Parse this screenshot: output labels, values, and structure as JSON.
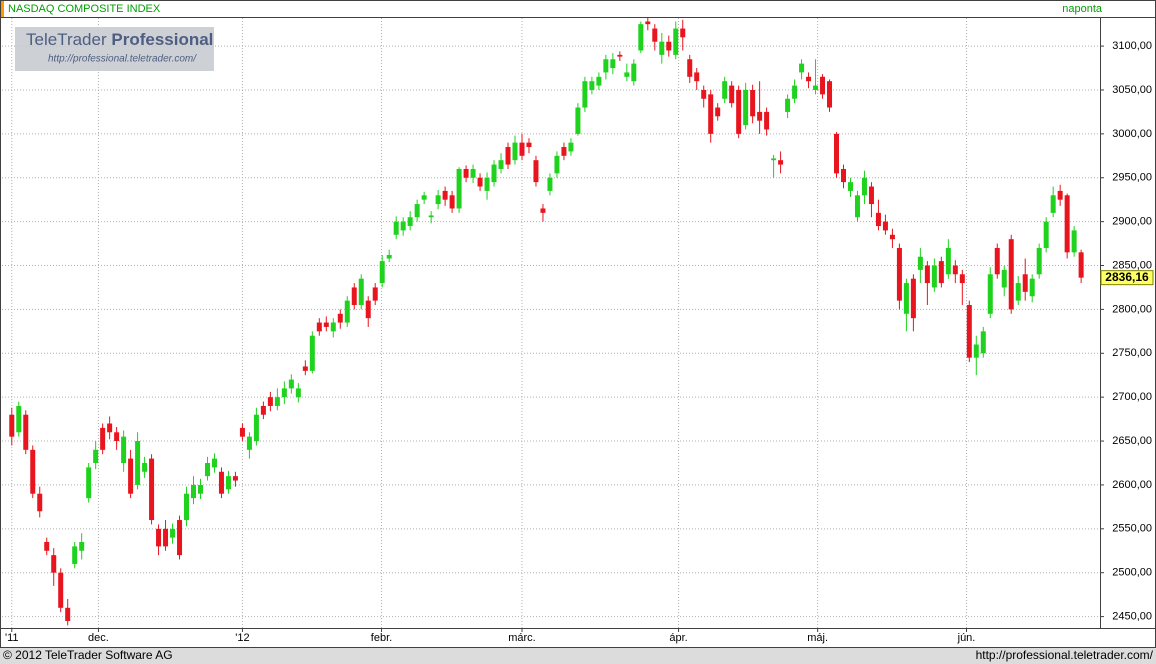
{
  "header": {
    "title": "NASDAQ COMPOSITE INDEX",
    "interval": "naponta"
  },
  "watermark": {
    "brand": "TeleTrader",
    "product": "Professional",
    "url": "http://professional.teletrader.com/"
  },
  "chart_data": {
    "type": "candlestick",
    "open": [
      2680,
      2660,
      2680,
      2640,
      2590,
      2535,
      2520,
      2500,
      2460,
      2510,
      2525,
      2585,
      2625,
      2665,
      2670,
      2660,
      2625,
      2630,
      2600,
      2615,
      2630,
      2550,
      2550,
      2540,
      2560,
      2560,
      2585,
      2590,
      2610,
      2620,
      2615,
      2595,
      2610,
      2665,
      2640,
      2650,
      2690,
      2700,
      2690,
      2700,
      2710,
      2700,
      2735,
      2730,
      2785,
      2785,
      2775,
      2795,
      2785,
      2825,
      2805,
      2810,
      2825,
      2830,
      2858,
      2885,
      2890,
      2895,
      2905,
      2925,
      2905,
      2920,
      2935,
      2930,
      2915,
      2960,
      2950,
      2950,
      2935,
      2945,
      2960,
      2985,
      2970,
      2990,
      2990,
      2970,
      2915,
      2935,
      2955,
      2985,
      2980,
      3000,
      3030,
      3050,
      3055,
      3070,
      3075,
      3090,
      3065,
      3060,
      3095,
      3128,
      3120,
      3090,
      3105,
      3090,
      3120,
      3085,
      3070,
      3050,
      3045,
      3030,
      3040,
      3055,
      3050,
      3010,
      3050,
      3025,
      3025,
      2970,
      2970,
      3025,
      3040,
      3070,
      3065,
      3050,
      3065,
      3060,
      3000,
      2960,
      2935,
      2905,
      2930,
      2940,
      2910,
      2900,
      2885,
      2870,
      2795,
      2835,
      2845,
      2850,
      2825,
      2855,
      2840,
      2850,
      2840,
      2805,
      2745,
      2750,
      2795,
      2870,
      2825,
      2880,
      2810,
      2840,
      2815,
      2840,
      2870,
      2910,
      2935,
      2930,
      2865,
      2865
    ],
    "high": [
      2688,
      2695,
      2685,
      2645,
      2598,
      2540,
      2528,
      2505,
      2470,
      2535,
      2545,
      2625,
      2650,
      2670,
      2678,
      2666,
      2662,
      2640,
      2660,
      2632,
      2635,
      2555,
      2560,
      2556,
      2565,
      2598,
      2610,
      2607,
      2632,
      2636,
      2620,
      2616,
      2615,
      2670,
      2660,
      2688,
      2695,
      2706,
      2710,
      2718,
      2726,
      2716,
      2742,
      2775,
      2790,
      2792,
      2790,
      2800,
      2815,
      2830,
      2840,
      2815,
      2830,
      2862,
      2868,
      2906,
      2905,
      2912,
      2925,
      2934,
      2912,
      2936,
      2940,
      2935,
      2962,
      2964,
      2965,
      2955,
      2956,
      2970,
      2978,
      2990,
      2998,
      3000,
      2995,
      2975,
      2920,
      2955,
      2980,
      2990,
      2995,
      3035,
      3065,
      3065,
      3070,
      3090,
      3092,
      3094,
      3080,
      3085,
      3128,
      3132,
      3125,
      3115,
      3112,
      3128,
      3130,
      3090,
      3075,
      3055,
      3050,
      3035,
      3065,
      3060,
      3055,
      3058,
      3056,
      3060,
      3030,
      2976,
      2980,
      3045,
      3062,
      3085,
      3070,
      3085,
      3068,
      3062,
      3002,
      2965,
      2950,
      2935,
      2958,
      2945,
      2925,
      2908,
      2892,
      2875,
      2835,
      2840,
      2870,
      2855,
      2858,
      2860,
      2880,
      2856,
      2845,
      2810,
      2770,
      2780,
      2848,
      2875,
      2850,
      2885,
      2838,
      2858,
      2840,
      2875,
      2905,
      2940,
      2942,
      2932,
      2895,
      2868
    ],
    "low": [
      2645,
      2655,
      2635,
      2585,
      2563,
      2520,
      2485,
      2455,
      2440,
      2505,
      2515,
      2580,
      2618,
      2635,
      2652,
      2640,
      2615,
      2585,
      2595,
      2608,
      2555,
      2520,
      2525,
      2533,
      2515,
      2553,
      2578,
      2584,
      2605,
      2614,
      2585,
      2590,
      2598,
      2650,
      2630,
      2645,
      2675,
      2684,
      2685,
      2692,
      2704,
      2694,
      2725,
      2727,
      2770,
      2775,
      2768,
      2778,
      2780,
      2800,
      2800,
      2780,
      2805,
      2825,
      2854,
      2880,
      2884,
      2890,
      2900,
      2920,
      2898,
      2914,
      2918,
      2910,
      2910,
      2945,
      2944,
      2935,
      2925,
      2940,
      2955,
      2960,
      2965,
      2970,
      2978,
      2940,
      2900,
      2930,
      2950,
      2970,
      2975,
      2998,
      3025,
      3045,
      3050,
      3062,
      3068,
      3083,
      3060,
      3055,
      3092,
      3118,
      3095,
      3080,
      3088,
      3085,
      3095,
      3058,
      3050,
      3030,
      2990,
      3015,
      3035,
      3030,
      2995,
      3005,
      3012,
      3000,
      2998,
      2950,
      2955,
      3018,
      3035,
      3062,
      3052,
      3045,
      3040,
      3025,
      2950,
      2938,
      2928,
      2900,
      2920,
      2905,
      2890,
      2885,
      2870,
      2800,
      2775,
      2775,
      2830,
      2805,
      2820,
      2825,
      2835,
      2830,
      2805,
      2740,
      2725,
      2745,
      2790,
      2835,
      2815,
      2795,
      2805,
      2810,
      2808,
      2835,
      2865,
      2905,
      2918,
      2858,
      2860,
      2830
    ],
    "close": [
      2655,
      2690,
      2640,
      2590,
      2570,
      2525,
      2500,
      2460,
      2445,
      2530,
      2535,
      2620,
      2640,
      2640,
      2660,
      2650,
      2655,
      2590,
      2650,
      2625,
      2560,
      2530,
      2530,
      2550,
      2520,
      2590,
      2600,
      2600,
      2625,
      2630,
      2590,
      2610,
      2605,
      2655,
      2655,
      2680,
      2680,
      2690,
      2700,
      2710,
      2720,
      2710,
      2730,
      2770,
      2775,
      2780,
      2785,
      2785,
      2810,
      2805,
      2835,
      2790,
      2810,
      2855,
      2862,
      2900,
      2900,
      2905,
      2920,
      2930,
      2907,
      2930,
      2925,
      2915,
      2960,
      2950,
      2960,
      2940,
      2950,
      2965,
      2970,
      2965,
      2990,
      2975,
      2985,
      2945,
      2910,
      2950,
      2975,
      2975,
      2990,
      3030,
      3060,
      3060,
      3065,
      3085,
      3085,
      3088,
      3070,
      3080,
      3125,
      3125,
      3105,
      3105,
      3095,
      3120,
      3110,
      3065,
      3060,
      3040,
      3000,
      3020,
      3060,
      3035,
      3000,
      3050,
      3020,
      3015,
      3005,
      2972,
      2965,
      3040,
      3055,
      3080,
      3060,
      3055,
      3045,
      3030,
      2955,
      2945,
      2945,
      2930,
      2950,
      2920,
      2895,
      2890,
      2880,
      2810,
      2830,
      2790,
      2860,
      2830,
      2850,
      2830,
      2870,
      2840,
      2830,
      2745,
      2760,
      2775,
      2840,
      2840,
      2845,
      2800,
      2830,
      2820,
      2835,
      2870,
      2900,
      2930,
      2925,
      2865,
      2890,
      2836.16
    ],
    "up_color": "#1ed21e",
    "down_color": "#e8141e",
    "xlim": [
      -1.4,
      155.7
    ],
    "xticks": [
      {
        "value": 0,
        "label": "'11"
      },
      {
        "value": 12.4,
        "label": "dec."
      },
      {
        "value": 33,
        "label": "'12"
      },
      {
        "value": 52.9,
        "label": "febr."
      },
      {
        "value": 73,
        "label": "márc."
      },
      {
        "value": 95.4,
        "label": "ápr."
      },
      {
        "value": 115.3,
        "label": "máj."
      },
      {
        "value": 136.6,
        "label": "jún."
      }
    ],
    "ylim": [
      2437,
      3132
    ],
    "yticks": [
      {
        "value": 2450,
        "label": "2450,00"
      },
      {
        "value": 2500,
        "label": "2500,00"
      },
      {
        "value": 2550,
        "label": "2550,00"
      },
      {
        "value": 2600,
        "label": "2600,00"
      },
      {
        "value": 2650,
        "label": "2650,00"
      },
      {
        "value": 2700,
        "label": "2700,00"
      },
      {
        "value": 2750,
        "label": "2750,00"
      },
      {
        "value": 2800,
        "label": "2800,00"
      },
      {
        "value": 2850,
        "label": "2850,00"
      },
      {
        "value": 2900,
        "label": "2900,00"
      },
      {
        "value": 2950,
        "label": "2950,00"
      },
      {
        "value": 3000,
        "label": "3000,00"
      },
      {
        "value": 3050,
        "label": "3050,00"
      },
      {
        "value": 3100,
        "label": "3100,00"
      }
    ],
    "last_price": {
      "value": 2836.16,
      "label": "2836,16"
    },
    "grid": true
  },
  "footer": {
    "copyright": "© 2012 TeleTrader Software AG",
    "url": "http://professional.teletrader.com/"
  }
}
